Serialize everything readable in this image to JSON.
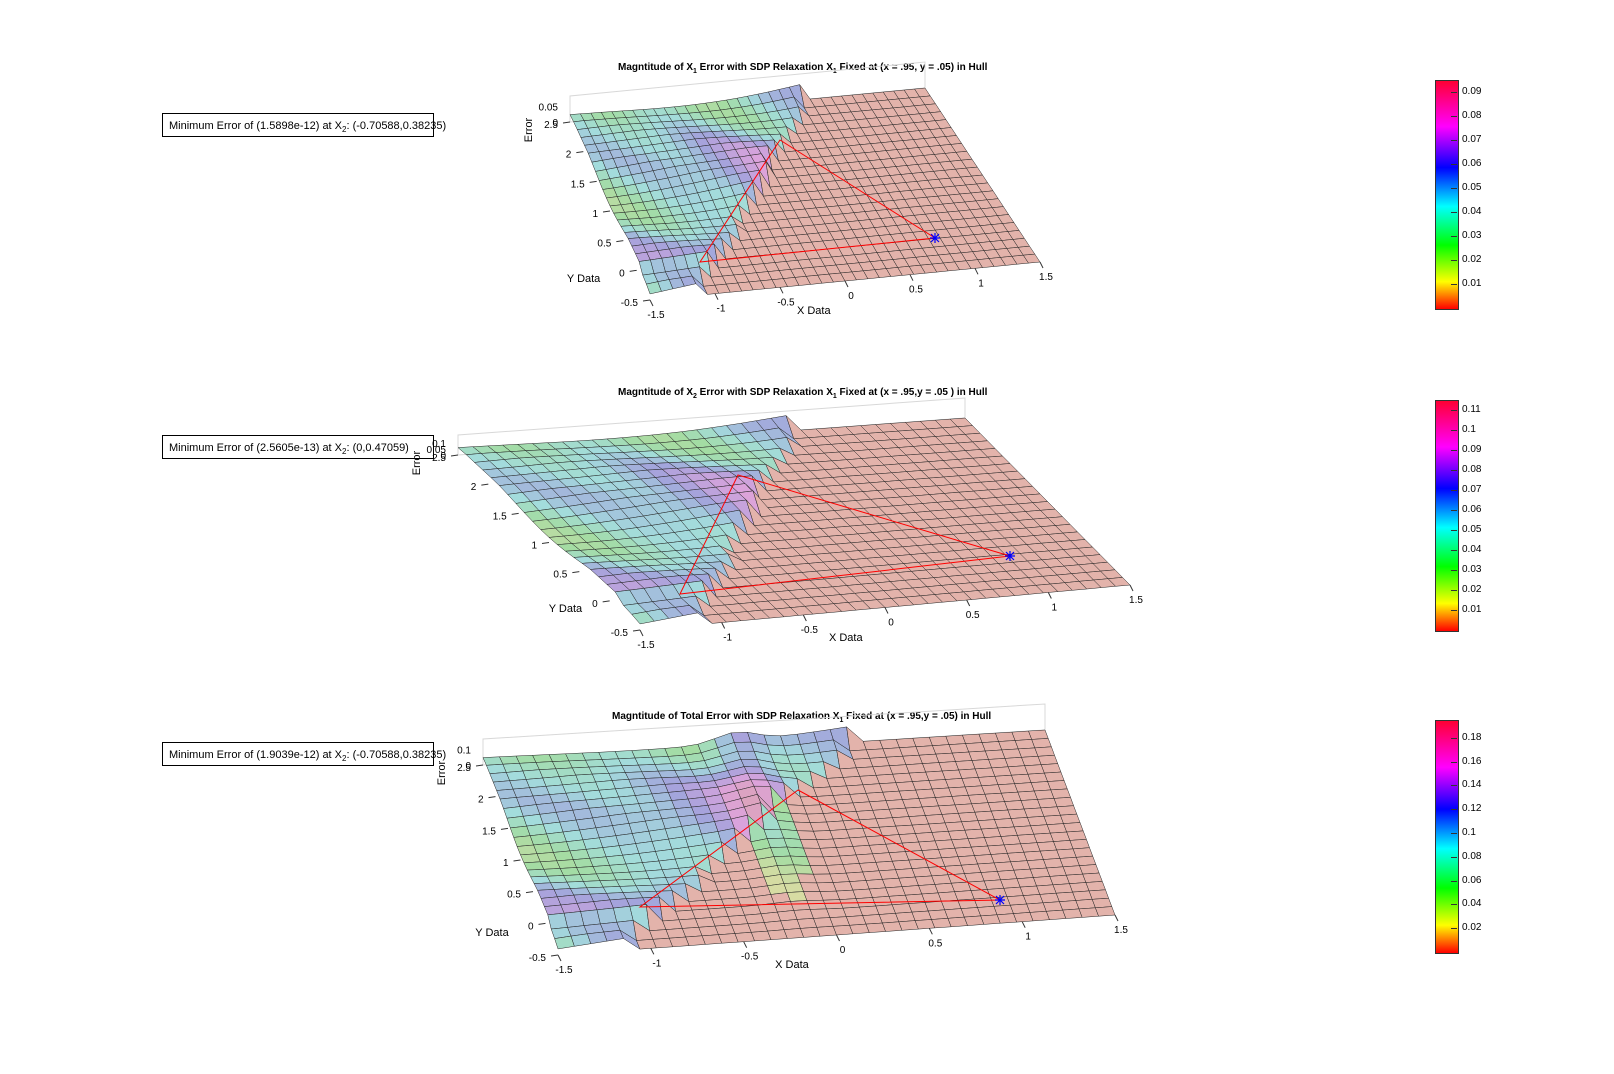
{
  "chart_data": [
    {
      "type": "surface",
      "title_prefix": "Magntitude of X",
      "title_sub": "1",
      "title_mid": " Error with SDP Relaxation X",
      "title_sub2": "1",
      "title_suffix": " Fixed at (x = .95, y = .05) in Hull",
      "annotation_prefix": "Minimum Error of (1.5898e-12) at X",
      "annotation_sub": "2",
      "annotation_suffix": ": (-0.70588,0.38235)",
      "xlabel": "X Data",
      "ylabel": "Y Data",
      "zlabel": "Error",
      "x_ticks": [
        "-1.5",
        "-1",
        "-0.5",
        "0",
        "0.5",
        "1",
        "1.5"
      ],
      "y_ticks": [
        "-0.5",
        "0",
        "0.5",
        "1",
        "1.5",
        "2",
        "2.5"
      ],
      "z_ticks": [
        "0",
        "0.05"
      ],
      "colorbar_ticks": [
        "0.01",
        "0.02",
        "0.03",
        "0.04",
        "0.05",
        "0.06",
        "0.07",
        "0.08",
        "0.09"
      ],
      "colorbar_max": 0.095
    },
    {
      "type": "surface",
      "title_prefix": "Magntitude of X",
      "title_sub": "2",
      "title_mid": " Error with SDP Relaxation X",
      "title_sub2": "1",
      "title_suffix": " Fixed at (x = .95,y = .05 ) in Hull",
      "annotation_prefix": "Minimum Error of (2.5605e-13) at X",
      "annotation_sub": "2",
      "annotation_suffix": ": (0,0.47059)",
      "xlabel": "X Data",
      "ylabel": "Y Data",
      "zlabel": "Error",
      "x_ticks": [
        "-1.5",
        "-1",
        "-0.5",
        "0",
        "0.5",
        "1",
        "1.5"
      ],
      "y_ticks": [
        "-0.5",
        "0",
        "0.5",
        "1",
        "1.5",
        "2",
        "2.5"
      ],
      "z_ticks": [
        "0",
        "0.05",
        "0.1"
      ],
      "colorbar_ticks": [
        "0.01",
        "0.02",
        "0.03",
        "0.04",
        "0.05",
        "0.06",
        "0.07",
        "0.08",
        "0.09",
        "0.1",
        "0.11"
      ],
      "colorbar_max": 0.115
    },
    {
      "type": "surface",
      "title_prefix": "Magntitude of Total Error with SDP Relaxation X",
      "title_sub": "1",
      "title_mid": "",
      "title_sub2": "",
      "title_suffix": " Fixed at (x = .95,y = .05) in Hull",
      "annotation_prefix": "Minimum Error of (1.9039e-12) at X",
      "annotation_sub": "2",
      "annotation_suffix": ": (-0.70588,0.38235)",
      "xlabel": "X Data",
      "ylabel": "Y Data",
      "zlabel": "Error",
      "x_ticks": [
        "-1.5",
        "-1",
        "-0.5",
        "0",
        "0.5",
        "1",
        "1.5"
      ],
      "y_ticks": [
        "-0.5",
        "0",
        "0.5",
        "1",
        "1.5",
        "2",
        "2.5"
      ],
      "z_ticks": [
        "0",
        "0.1"
      ],
      "colorbar_ticks": [
        "0.02",
        "0.04",
        "0.06",
        "0.08",
        "0.1",
        "0.12",
        "0.14",
        "0.16",
        "0.18"
      ],
      "colorbar_max": 0.195
    }
  ],
  "colors": {
    "surface_base": "#e0b0a8",
    "triangle": "#ff0000",
    "marker": "#0000ff"
  }
}
